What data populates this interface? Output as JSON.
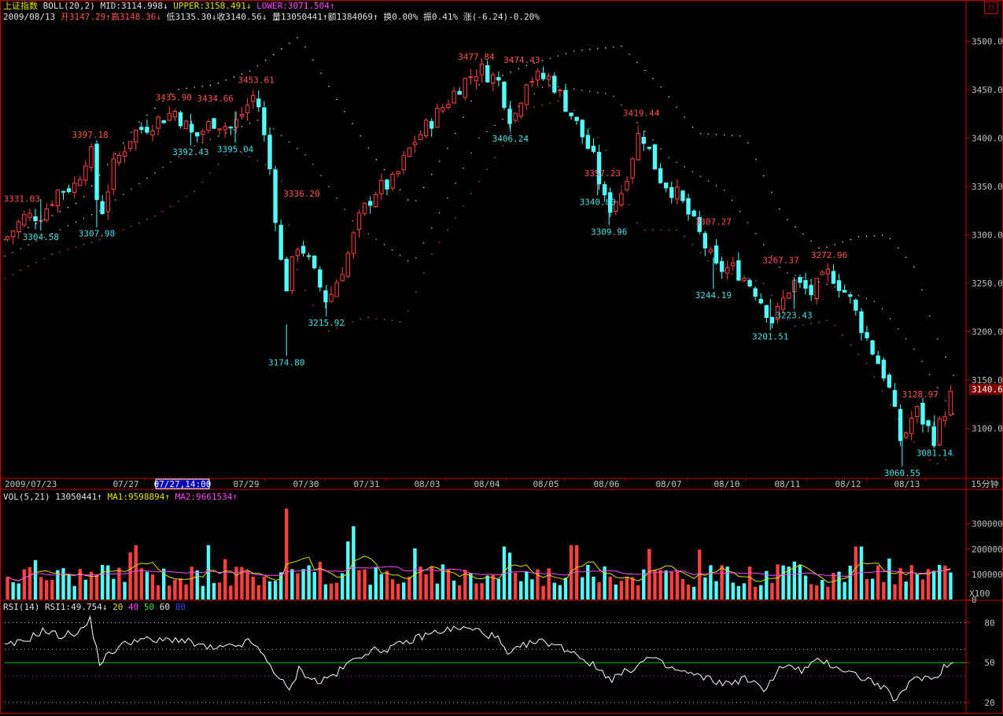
{
  "header": {
    "index_name": "上证指数",
    "boll_label": "BOLL(20,2)",
    "mid": "MID:3114.998↓",
    "upper": "UPPER:3158.491↓",
    "lower": "LOWER:3071.504↑",
    "date": "2009/08/13",
    "open": "开3147.29↑",
    "high": "高3148.36↓",
    "low": "低3135.30↓",
    "close": "收3140.56↓",
    "volume": "量13050441↑",
    "amount": "额1384069↑",
    "turnover": "换0.00%",
    "amplitude": "振0.41%",
    "change": "涨(-6.24)-0.20%"
  },
  "vol_header": {
    "label": "VOL(5,21)",
    "value": "13050441↑",
    "ma1": "MA1:9598894↑",
    "ma2": "MA2:9661534↑"
  },
  "rsi_header": {
    "label": "RSI(14)",
    "value": "RSI1:49.754↓",
    "l20": "20",
    "l40": "40",
    "l50": "50",
    "l60": "60",
    "l80": "80"
  },
  "time_axis": {
    "start": "2009/07/23",
    "highlight": "07/27,14:00",
    "labels": [
      "07/27",
      "07/29",
      "07/30",
      "07/31",
      "08/03",
      "08/04",
      "08/05",
      "08/06",
      "08/07",
      "08/10",
      "08/11",
      "08/12",
      "08/13"
    ],
    "period": "15分钟"
  },
  "colors": {
    "up": "#ff4040",
    "down": "#54fcfc",
    "upper": "#e0e0a0",
    "lower": "#c040c0",
    "ma1": "#e0e000",
    "ma2": "#ff40ff",
    "rsi": "#ffffff",
    "rsi50": "#00c000",
    "axis": "#c00000"
  },
  "chart_data": [
    {
      "type": "candlestick",
      "title": "上证指数 15分钟 BOLL(20,2)",
      "ylim": [
        3050,
        3520
      ],
      "yticks": [
        3100,
        3150,
        3200,
        3250,
        3300,
        3350,
        3400,
        3450,
        3500
      ],
      "last_price": "3140.6",
      "annotations": [
        {
          "text": "3331.03",
          "kind": "high",
          "x": 0.018,
          "v": 3331.03
        },
        {
          "text": "3304.58",
          "kind": "low",
          "x": 0.038,
          "v": 3304.58
        },
        {
          "text": "3397.18",
          "kind": "high",
          "x": 0.09,
          "v": 3397.18
        },
        {
          "text": "3307.98",
          "kind": "low",
          "x": 0.097,
          "v": 3307.98
        },
        {
          "text": "3435.90",
          "kind": "high",
          "x": 0.178,
          "v": 3435.9
        },
        {
          "text": "3434.66",
          "kind": "high",
          "x": 0.222,
          "v": 3434.66
        },
        {
          "text": "3392.43",
          "kind": "low",
          "x": 0.196,
          "v": 3392.43
        },
        {
          "text": "3395.04",
          "kind": "low",
          "x": 0.243,
          "v": 3395.04
        },
        {
          "text": "3453.61",
          "kind": "high",
          "x": 0.265,
          "v": 3453.61
        },
        {
          "text": "3174.80",
          "kind": "low",
          "x": 0.297,
          "v": 3174.8
        },
        {
          "text": "3336.20",
          "kind": "high",
          "x": 0.313,
          "v": 3336.2
        },
        {
          "text": "3215.92",
          "kind": "low",
          "x": 0.339,
          "v": 3215.92
        },
        {
          "text": "3477.84",
          "kind": "high",
          "x": 0.497,
          "v": 3477.84
        },
        {
          "text": "3474.43",
          "kind": "high",
          "x": 0.545,
          "v": 3474.43
        },
        {
          "text": "3406.24",
          "kind": "low",
          "x": 0.533,
          "v": 3406.24
        },
        {
          "text": "3419.44",
          "kind": "high",
          "x": 0.671,
          "v": 3419.44
        },
        {
          "text": "3357.23",
          "kind": "high",
          "x": 0.63,
          "v": 3357.23
        },
        {
          "text": "3340.80",
          "kind": "low",
          "x": 0.625,
          "v": 3340.8
        },
        {
          "text": "3309.96",
          "kind": "low",
          "x": 0.637,
          "v": 3309.96
        },
        {
          "text": "3307.27",
          "kind": "high",
          "x": 0.747,
          "v": 3307.27
        },
        {
          "text": "3244.19",
          "kind": "low",
          "x": 0.747,
          "v": 3244.19
        },
        {
          "text": "3267.37",
          "kind": "high",
          "x": 0.818,
          "v": 3267.37
        },
        {
          "text": "3201.51",
          "kind": "low",
          "x": 0.807,
          "v": 3201.51
        },
        {
          "text": "3223.43",
          "kind": "low",
          "x": 0.832,
          "v": 3223.43
        },
        {
          "text": "3272.96",
          "kind": "high",
          "x": 0.869,
          "v": 3272.96
        },
        {
          "text": "3128.97",
          "kind": "high",
          "x": 0.965,
          "v": 3128.97
        },
        {
          "text": "3060.55",
          "kind": "low",
          "x": 0.946,
          "v": 3060.55
        },
        {
          "text": "3081.14",
          "kind": "low",
          "x": 0.98,
          "v": 3081.14
        }
      ],
      "close_path": [
        [
          0,
          3295
        ],
        [
          0.02,
          3318
        ],
        [
          0.04,
          3322
        ],
        [
          0.055,
          3345
        ],
        [
          0.075,
          3352
        ],
        [
          0.09,
          3392
        ],
        [
          0.1,
          3315
        ],
        [
          0.115,
          3372
        ],
        [
          0.135,
          3405
        ],
        [
          0.16,
          3418
        ],
        [
          0.18,
          3428
        ],
        [
          0.2,
          3400
        ],
        [
          0.22,
          3418
        ],
        [
          0.24,
          3410
        ],
        [
          0.265,
          3448
        ],
        [
          0.28,
          3365
        ],
        [
          0.295,
          3240
        ],
        [
          0.31,
          3295
        ],
        [
          0.325,
          3262
        ],
        [
          0.34,
          3230
        ],
        [
          0.36,
          3275
        ],
        [
          0.375,
          3320
        ],
        [
          0.39,
          3345
        ],
        [
          0.41,
          3355
        ],
        [
          0.43,
          3395
        ],
        [
          0.46,
          3430
        ],
        [
          0.48,
          3455
        ],
        [
          0.5,
          3472
        ],
        [
          0.52,
          3460
        ],
        [
          0.535,
          3415
        ],
        [
          0.55,
          3462
        ],
        [
          0.575,
          3462
        ],
        [
          0.6,
          3420
        ],
        [
          0.62,
          3380
        ],
        [
          0.635,
          3325
        ],
        [
          0.65,
          3345
        ],
        [
          0.67,
          3410
        ],
        [
          0.69,
          3360
        ],
        [
          0.71,
          3340
        ],
        [
          0.73,
          3305
        ],
        [
          0.75,
          3265
        ],
        [
          0.77,
          3265
        ],
        [
          0.79,
          3245
        ],
        [
          0.81,
          3210
        ],
        [
          0.83,
          3252
        ],
        [
          0.85,
          3240
        ],
        [
          0.87,
          3262
        ],
        [
          0.89,
          3235
        ],
        [
          0.91,
          3190
        ],
        [
          0.93,
          3150
        ],
        [
          0.945,
          3085
        ],
        [
          0.96,
          3120
        ],
        [
          0.98,
          3090
        ],
        [
          1.0,
          3141
        ]
      ],
      "upper_path": [
        [
          0,
          3295
        ],
        [
          0.08,
          3335
        ],
        [
          0.14,
          3415
        ],
        [
          0.18,
          3450
        ],
        [
          0.22,
          3455
        ],
        [
          0.26,
          3470
        ],
        [
          0.31,
          3505
        ],
        [
          0.35,
          3440
        ],
        [
          0.39,
          3380
        ],
        [
          0.43,
          3330
        ],
        [
          0.47,
          3395
        ],
        [
          0.5,
          3455
        ],
        [
          0.55,
          3475
        ],
        [
          0.6,
          3490
        ],
        [
          0.65,
          3495
        ],
        [
          0.69,
          3455
        ],
        [
          0.73,
          3405
        ],
        [
          0.78,
          3402
        ],
        [
          0.82,
          3320
        ],
        [
          0.86,
          3285
        ],
        [
          0.9,
          3298
        ],
        [
          0.93,
          3300
        ],
        [
          0.96,
          3265
        ],
        [
          0.98,
          3200
        ],
        [
          1.0,
          3155
        ]
      ],
      "lower_path": [
        [
          0,
          3255
        ],
        [
          0.05,
          3280
        ],
        [
          0.1,
          3295
        ],
        [
          0.16,
          3320
        ],
        [
          0.2,
          3345
        ],
        [
          0.24,
          3390
        ],
        [
          0.29,
          3365
        ],
        [
          0.31,
          3255
        ],
        [
          0.34,
          3200
        ],
        [
          0.38,
          3215
        ],
        [
          0.42,
          3210
        ],
        [
          0.45,
          3280
        ],
        [
          0.5,
          3355
        ],
        [
          0.55,
          3430
        ],
        [
          0.59,
          3440
        ],
        [
          0.63,
          3395
        ],
        [
          0.67,
          3305
        ],
        [
          0.71,
          3305
        ],
        [
          0.75,
          3265
        ],
        [
          0.8,
          3250
        ],
        [
          0.83,
          3205
        ],
        [
          0.87,
          3212
        ],
        [
          0.91,
          3165
        ],
        [
          0.95,
          3095
        ],
        [
          0.98,
          3062
        ],
        [
          1.0,
          3072
        ]
      ],
      "mid_path": [
        [
          0,
          3278
        ],
        [
          0.1,
          3325
        ],
        [
          0.2,
          3392
        ],
        [
          0.27,
          3420
        ],
        [
          0.32,
          3380
        ],
        [
          0.37,
          3310
        ],
        [
          0.43,
          3270
        ],
        [
          0.5,
          3400
        ],
        [
          0.57,
          3455
        ],
        [
          0.64,
          3445
        ],
        [
          0.7,
          3380
        ],
        [
          0.76,
          3345
        ],
        [
          0.82,
          3262
        ],
        [
          0.87,
          3248
        ],
        [
          0.92,
          3230
        ],
        [
          0.96,
          3180
        ],
        [
          1.0,
          3115
        ]
      ]
    },
    {
      "type": "bar",
      "title": "VOL(5,21)",
      "ylim": [
        0,
        380000
      ],
      "yticks": [
        0,
        100000,
        200000,
        300000
      ],
      "unit_label": "X100",
      "spikes": [
        [
          0.295,
          360000
        ],
        [
          0.37,
          300000
        ],
        [
          0.37,
          290000
        ],
        [
          0.36,
          230000
        ],
        [
          0.215,
          215000
        ],
        [
          0.14,
          215000
        ],
        [
          0.525,
          210000
        ],
        [
          0.6,
          215000
        ],
        [
          0.9,
          210000
        ],
        [
          0.68,
          200000
        ]
      ],
      "ma1_level": 125000,
      "ma2_level": 110000
    },
    {
      "type": "line",
      "title": "RSI(14)",
      "ylim": [
        14,
        88
      ],
      "yticks": [
        20,
        50,
        80
      ],
      "reference_lines": [
        20,
        40,
        50,
        60,
        80
      ],
      "rsi_path": [
        [
          0,
          62
        ],
        [
          0.02,
          66
        ],
        [
          0.04,
          74
        ],
        [
          0.06,
          70
        ],
        [
          0.08,
          74
        ],
        [
          0.09,
          82
        ],
        [
          0.1,
          50
        ],
        [
          0.12,
          62
        ],
        [
          0.14,
          68
        ],
        [
          0.16,
          66
        ],
        [
          0.18,
          68
        ],
        [
          0.2,
          64
        ],
        [
          0.22,
          60
        ],
        [
          0.24,
          62
        ],
        [
          0.26,
          66
        ],
        [
          0.28,
          48
        ],
        [
          0.3,
          28
        ],
        [
          0.31,
          45
        ],
        [
          0.33,
          35
        ],
        [
          0.35,
          42
        ],
        [
          0.36,
          48
        ],
        [
          0.38,
          58
        ],
        [
          0.4,
          60
        ],
        [
          0.42,
          64
        ],
        [
          0.44,
          70
        ],
        [
          0.46,
          74
        ],
        [
          0.48,
          76
        ],
        [
          0.5,
          74
        ],
        [
          0.52,
          68
        ],
        [
          0.53,
          55
        ],
        [
          0.55,
          64
        ],
        [
          0.57,
          66
        ],
        [
          0.6,
          58
        ],
        [
          0.62,
          48
        ],
        [
          0.64,
          38
        ],
        [
          0.66,
          45
        ],
        [
          0.68,
          54
        ],
        [
          0.7,
          46
        ],
        [
          0.72,
          42
        ],
        [
          0.74,
          38
        ],
        [
          0.76,
          34
        ],
        [
          0.78,
          38
        ],
        [
          0.8,
          30
        ],
        [
          0.82,
          48
        ],
        [
          0.84,
          44
        ],
        [
          0.86,
          52
        ],
        [
          0.88,
          46
        ],
        [
          0.9,
          40
        ],
        [
          0.92,
          34
        ],
        [
          0.94,
          22
        ],
        [
          0.95,
          30
        ],
        [
          0.96,
          40
        ],
        [
          0.98,
          38
        ],
        [
          0.99,
          47
        ],
        [
          1.0,
          50
        ]
      ]
    }
  ]
}
